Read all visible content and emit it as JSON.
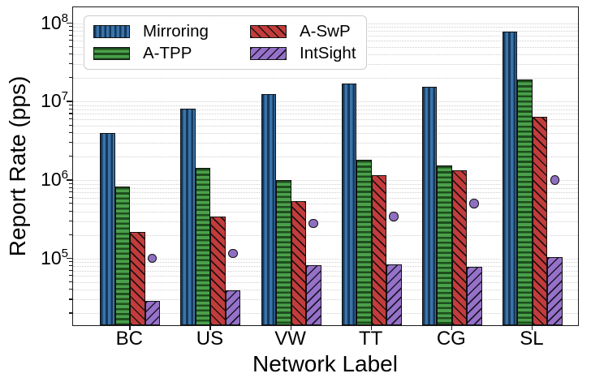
{
  "chart_data": {
    "type": "bar",
    "y_scale": "log",
    "title": "",
    "xlabel": "Network Label",
    "ylabel": "Report Rate (pps)",
    "categories": [
      "BC",
      "US",
      "VW",
      "TT",
      "CG",
      "SL"
    ],
    "series": [
      {
        "name": "Mirroring",
        "color": "#3a74a9",
        "hatch": "vertical",
        "hatch_color": "#16395c",
        "values": [
          4000000.0,
          8200000.0,
          12500000.0,
          17000000.0,
          15500000.0,
          78000000.0
        ]
      },
      {
        "name": "A-TPP",
        "color": "#4ba04b",
        "hatch": "horizontal",
        "hatch_color": "#1d4e1d",
        "values": [
          830000.0,
          1450000.0,
          1000000.0,
          1800000.0,
          1550000.0,
          19000000.0
        ]
      },
      {
        "name": "A-SwP",
        "color": "#c33c3c",
        "hatch": "backslash",
        "hatch_color": "#241010",
        "values": [
          220000.0,
          340000.0,
          540000.0,
          1150000.0,
          1350000.0,
          6500000.0
        ]
      },
      {
        "name": "IntSight",
        "color": "#9572c7",
        "hatch": "forwardslash",
        "hatch_color": "#1c1430",
        "values": [
          29000.0,
          39000.0,
          82000.0,
          85000.0,
          78000.0,
          105000.0
        ]
      }
    ],
    "markers": {
      "name": "IntSight dot markers",
      "shape": "circle",
      "color": "#8f6fc0",
      "values": [
        100000.0,
        115000.0,
        280000.0,
        340000.0,
        500000.0,
        1000000.0
      ]
    },
    "ylim": [
      13500.0,
      160000000.0
    ],
    "ytick_exponents": [
      5,
      6,
      7,
      8
    ],
    "grid": "horizontal dotted minor+major, log decades 2-9",
    "grid_color": "#cfcfcf",
    "axis_color": "#1a1a1a",
    "legend_position": "upper left",
    "legend_order_row_major": [
      0,
      2,
      1,
      3
    ]
  }
}
